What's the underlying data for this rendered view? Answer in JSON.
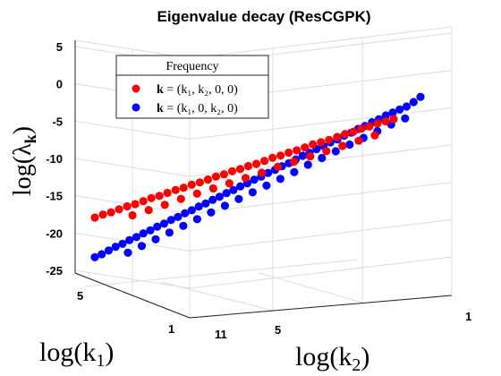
{
  "chart_data": {
    "type": "scatter",
    "title": "Eigenvalue decay (ResCGPK)",
    "zlabel_main": "log(λ",
    "zlabel_sub": "k",
    "zlabel_close": ")",
    "xlabel_main": "log(k",
    "xlabel_sub": "2",
    "xlabel_close": ")",
    "ylabel_main": "log(k",
    "ylabel_sub": "1",
    "ylabel_close": ")",
    "z_ticks": [
      "5",
      "0",
      "-5",
      "-10",
      "-15",
      "-20",
      "-25"
    ],
    "z_tick_values": [
      5,
      0,
      -5,
      -10,
      -15,
      -20,
      -25
    ],
    "x_ticks": [
      "11",
      "5",
      "1"
    ],
    "y_ticks": [
      "5",
      "1"
    ],
    "zlim": [
      -25,
      5
    ],
    "legend": {
      "title": "Frequency",
      "placement": "top-left",
      "entries": [
        {
          "label_bold": "k",
          "label_rest": " = (k₁, k₂, 0, 0)",
          "color": "#ff0000"
        },
        {
          "label_bold": "k",
          "label_rest": " = (k₁, 0, k₂, 0)",
          "color": "#0000ff"
        }
      ]
    },
    "series": [
      {
        "color": "#ff0000",
        "values": [
          -17.2,
          -16.8,
          -16.5,
          -16.1,
          -15.7,
          -15.4,
          -15.0,
          -14.6,
          -14.3,
          -13.9,
          -13.5,
          -13.2,
          -12.8,
          -12.5,
          -12.1,
          -11.7,
          -11.4,
          -11.0,
          -10.7,
          -10.3,
          -10.0,
          -9.6,
          -9.2,
          -8.9,
          -8.5,
          -8.2,
          -7.8,
          -7.4,
          -7.1,
          -6.8,
          -6.4,
          -6.0,
          -5.7,
          -5.3,
          -5.0,
          -4.6,
          -4.3,
          -4.0
        ]
      },
      {
        "color": "#0000ff",
        "values": [
          -23.0,
          -22.6,
          -22.1,
          -21.6,
          -21.2,
          -20.7,
          -20.3,
          -19.8,
          -19.4,
          -18.9,
          -18.5,
          -18.0,
          -17.6,
          -17.1,
          -16.7,
          -16.2,
          -15.8,
          -15.3,
          -14.9,
          -14.4,
          -14.0,
          -13.5,
          -13.1,
          -12.6,
          -12.2,
          -11.7,
          -11.3,
          -10.8,
          -10.4,
          -9.9,
          -9.4,
          -9.0,
          -8.5,
          -8.1,
          -7.6,
          -7.2,
          -6.7,
          -6.3,
          -5.8,
          -5.4,
          -4.9,
          -4.5,
          -4.0,
          -3.6,
          -3.2,
          -2.8,
          -2.2,
          -1.5
        ]
      }
    ]
  }
}
